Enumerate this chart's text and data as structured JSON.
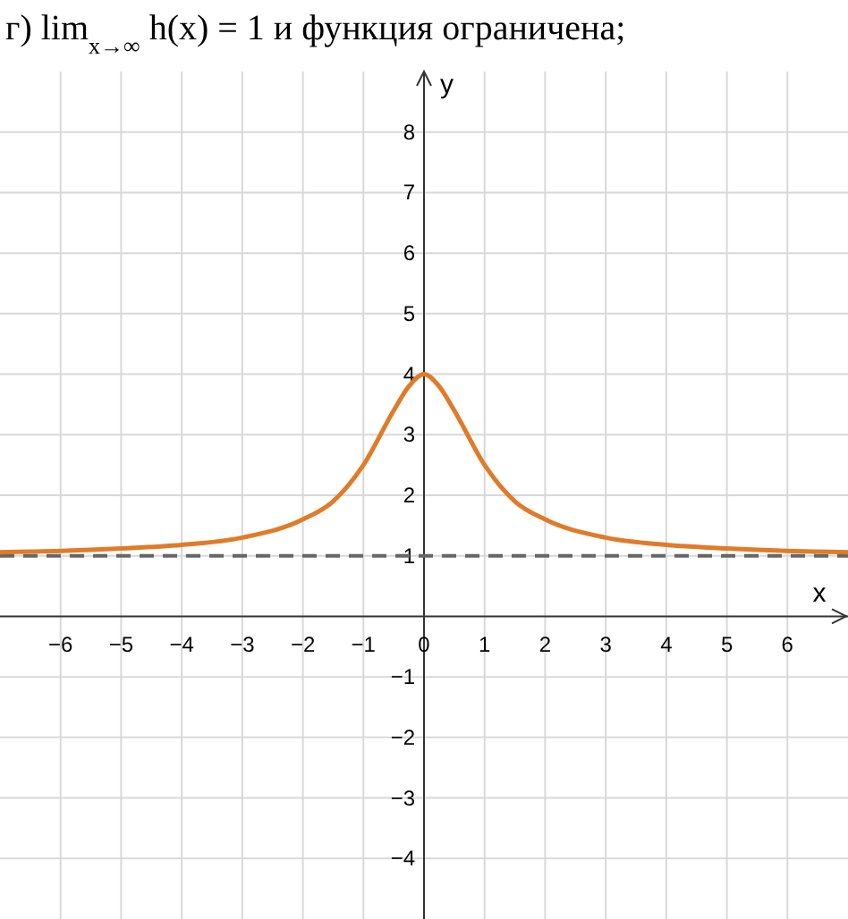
{
  "chart_data": {
    "type": "line",
    "title": "г) lim$_{x→∞}$ h(x) = 1 и функция ограничена;",
    "xlabel": "x",
    "ylabel": "y",
    "x": [
      -7,
      -6,
      -5,
      -4,
      -3,
      -2,
      -1.5,
      -1,
      -0.5,
      -0.25,
      0,
      0.25,
      0.5,
      1,
      1.5,
      2,
      3,
      4,
      5,
      6,
      7
    ],
    "series": [
      {
        "color": "#e07b2a",
        "values": [
          1.06,
          1.08,
          1.12,
          1.18,
          1.3,
          1.6,
          1.9,
          2.5,
          3.4,
          3.8,
          4,
          3.8,
          3.4,
          2.5,
          1.9,
          1.6,
          1.3,
          1.18,
          1.12,
          1.08,
          1.06
        ]
      }
    ],
    "xlim": [
      -7,
      7
    ],
    "ylim": [
      -5,
      9
    ],
    "xticks": [
      -6,
      -5,
      -4,
      -3,
      -2,
      -1,
      0,
      1,
      2,
      3,
      4,
      5,
      6
    ],
    "yticks": [
      -4,
      -3,
      -2,
      -1,
      1,
      2,
      3,
      4,
      5,
      6,
      7,
      8
    ],
    "grid": true,
    "line_style": "solid",
    "marker": "none",
    "ref_lines": [
      {
        "axis": "y",
        "value": 1,
        "color": "#666666",
        "line_style": "dashed"
      }
    ]
  }
}
